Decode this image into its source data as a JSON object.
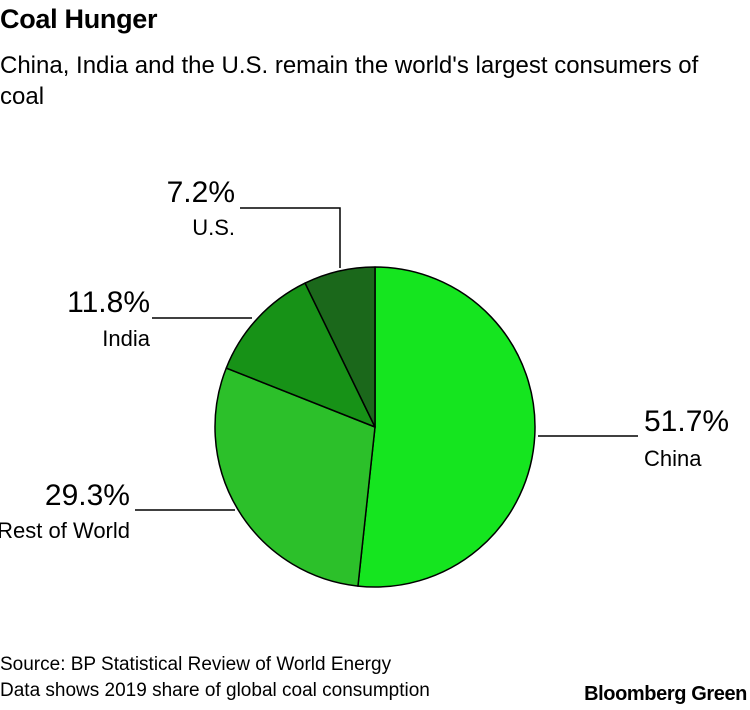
{
  "title": "Coal Hunger",
  "subtitle": "China, India and the U.S. remain the world's largest consumers of coal",
  "chart_data": {
    "type": "pie",
    "title": "Coal Hunger",
    "subtitle": "China, India and the U.S. remain the world's largest consumers of coal",
    "slices": [
      {
        "label": "China",
        "value": 51.7,
        "value_label": "51.7%",
        "color": "#15e51f"
      },
      {
        "label": "Rest of World",
        "value": 29.3,
        "value_label": "29.3%",
        "color": "#2cc02a"
      },
      {
        "label": "India",
        "value": 11.8,
        "value_label": "11.8%",
        "color": "#179217"
      },
      {
        "label": "U.S.",
        "value": 7.2,
        "value_label": "7.2%",
        "color": "#1b681b"
      }
    ],
    "outline_color": "#000000"
  },
  "footer": {
    "source": "Source: BP Statistical Review of World Energy",
    "note": "Data shows 2019 share of global coal consumption"
  },
  "brand": "Bloomberg Green"
}
